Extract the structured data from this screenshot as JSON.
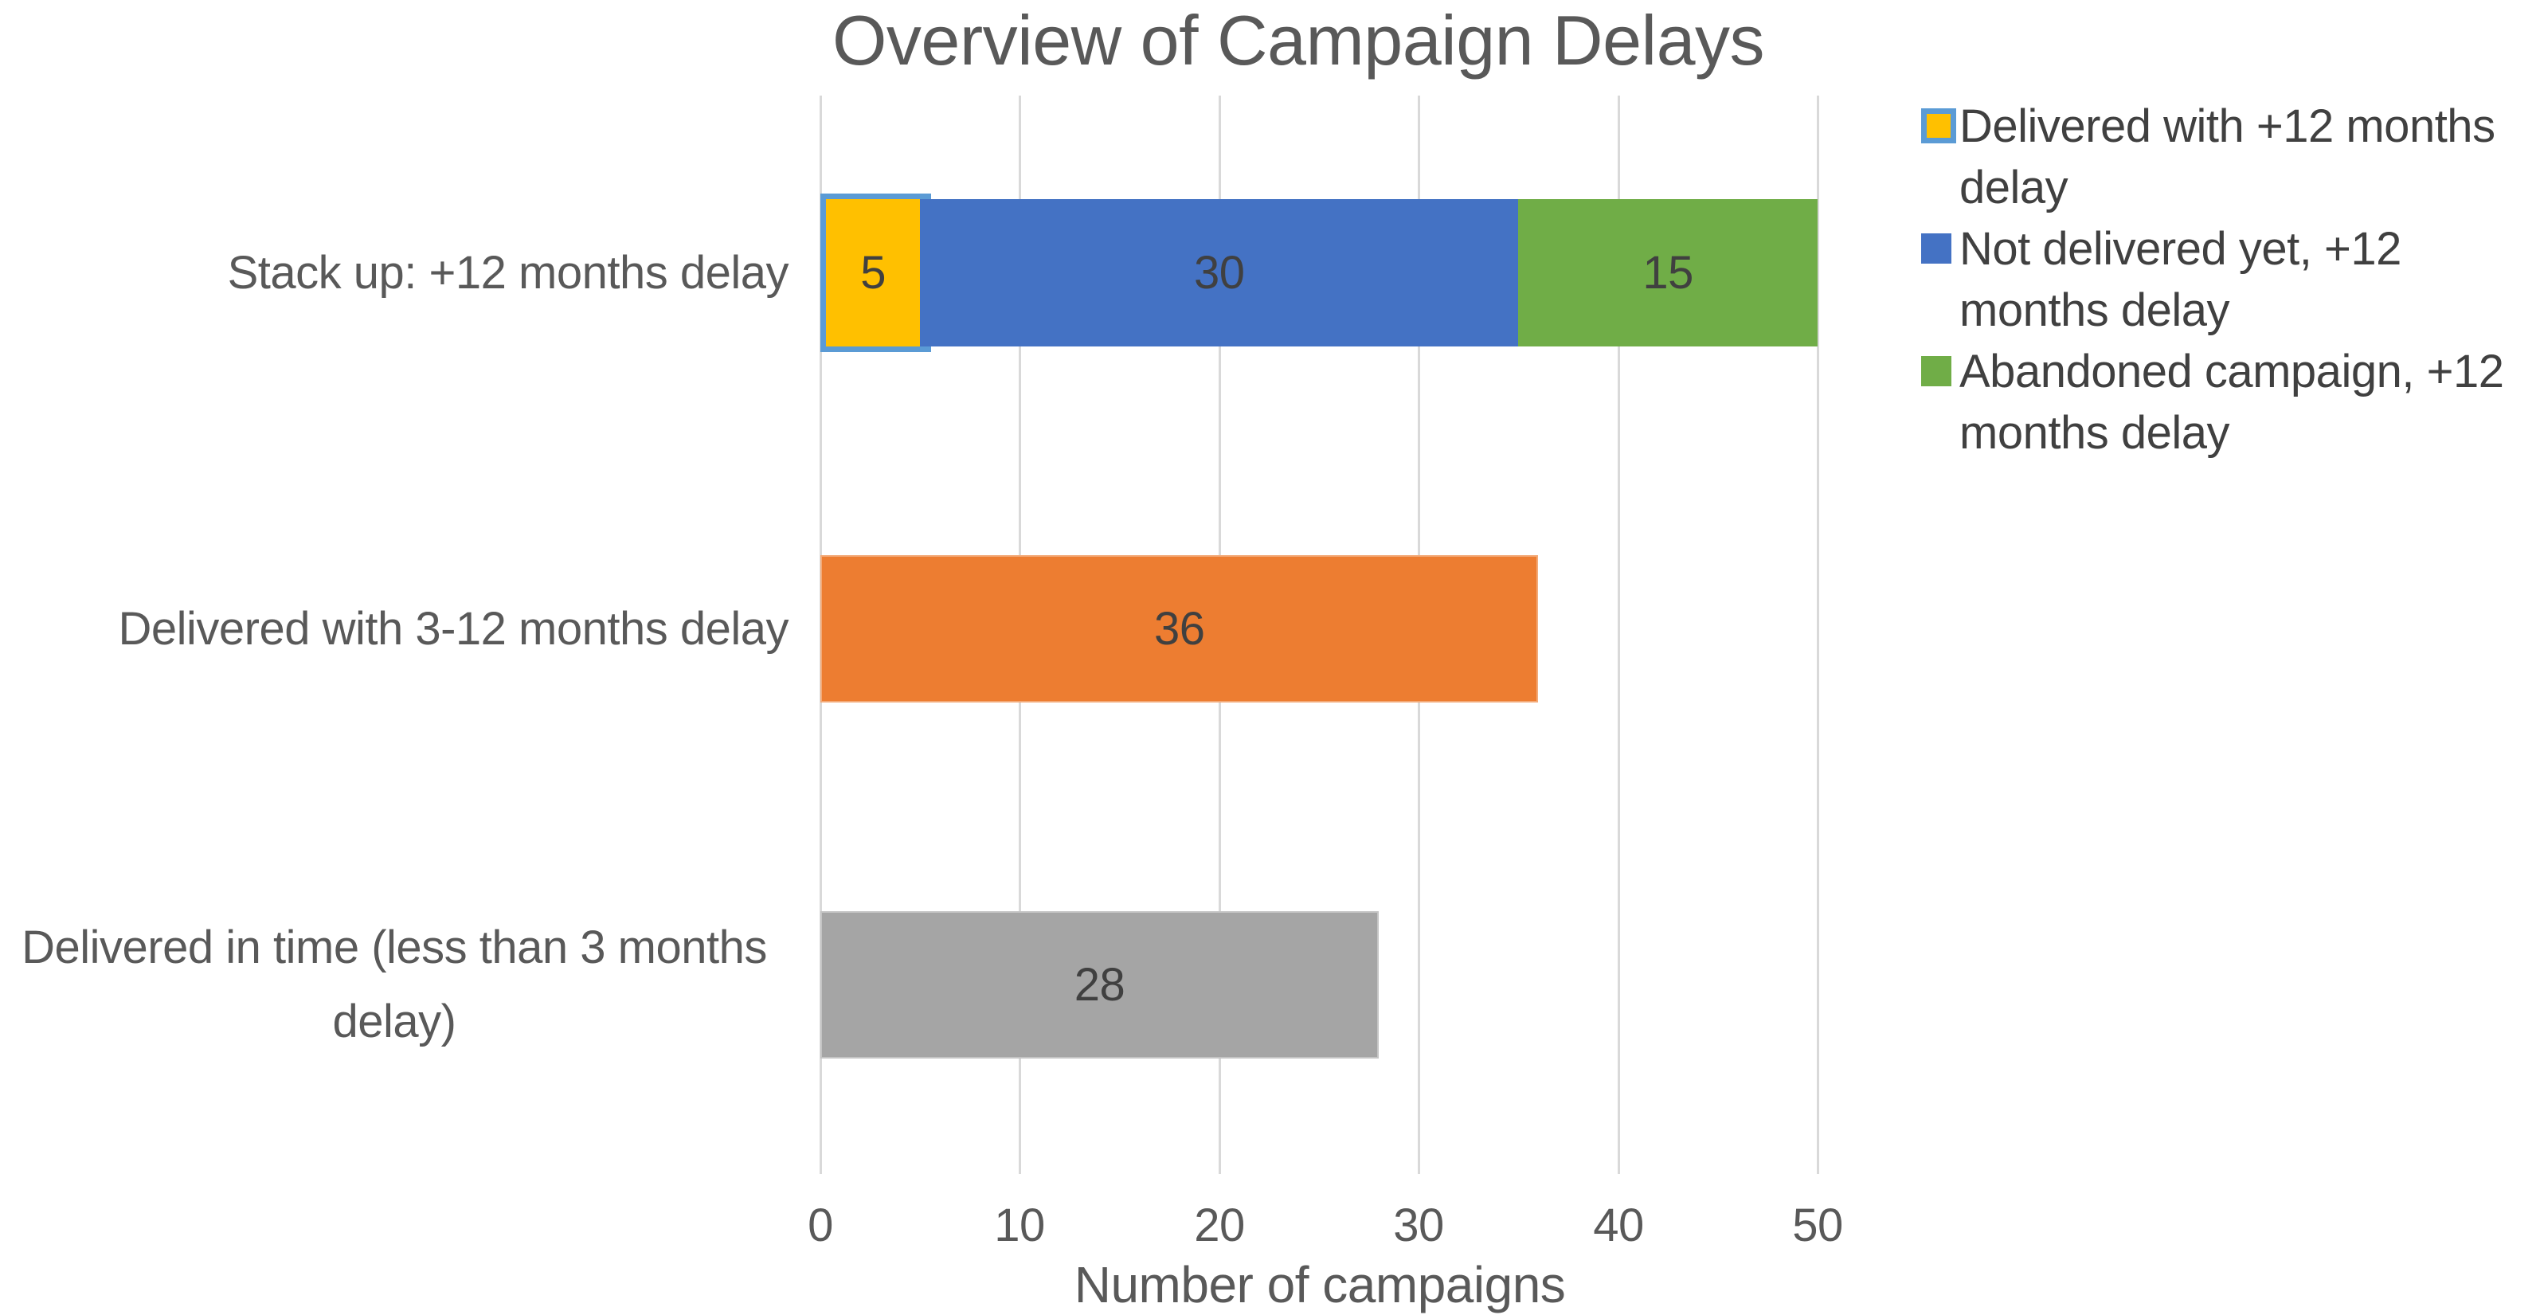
{
  "title": "Overview of Campaign Delays",
  "x_axis": {
    "label": "Number of campaigns",
    "tick_labels": [
      "0",
      "10",
      "20",
      "30",
      "40",
      "50"
    ],
    "min": 0,
    "max": 50
  },
  "legend": {
    "position": "top-right",
    "items": [
      {
        "label": "Delivered with +12 months delay",
        "color": "#FFC000",
        "border_color": "#5B9BD5"
      },
      {
        "label": "Not delivered yet, +12 months delay",
        "color": "#4472C4"
      },
      {
        "label": "Abandoned campaign, +12 months delay",
        "color": "#70AD47"
      }
    ]
  },
  "chart_data": {
    "type": "bar",
    "orientation": "horizontal",
    "stacked": true,
    "title": "Overview of Campaign Delays",
    "xlabel": "Number of campaigns",
    "xlim": [
      0,
      50
    ],
    "x_ticks": [
      0,
      10,
      20,
      30,
      40,
      50
    ],
    "grid": "vertical-only",
    "legend_position": "top-right",
    "categories": [
      "Stack up: +12 months delay",
      "Delivered with 3-12 months delay",
      "Delivered in time (less than 3 months delay)"
    ],
    "bars": [
      {
        "category": "Stack up: +12 months delay",
        "segments": [
          {
            "series": "Delivered with +12 months delay",
            "value": 5,
            "color": "#FFC000",
            "highlighted": true,
            "highlight_color": "#5B9BD5"
          },
          {
            "series": "Not delivered yet, +12 months delay",
            "value": 30,
            "color": "#4472C4"
          },
          {
            "series": "Abandoned campaign, +12 months delay",
            "value": 15,
            "color": "#70AD47"
          }
        ]
      },
      {
        "category": "Delivered with 3-12 months delay",
        "segments": [
          {
            "series": "Delivered with 3-12 months delay",
            "value": 36,
            "color": "#ED7D31"
          }
        ]
      },
      {
        "category": "Delivered in time (less than 3 months delay)",
        "segments": [
          {
            "series": "Delivered in time (less than 3 months delay)",
            "value": 28,
            "color": "#A5A5A5"
          }
        ]
      }
    ]
  },
  "colors": {
    "title_text": "#595959",
    "axis_text": "#595959",
    "data_label_text": "#404040",
    "legend_text": "#404040",
    "gridline": "#D9D9D9",
    "background": "#FFFFFF"
  }
}
